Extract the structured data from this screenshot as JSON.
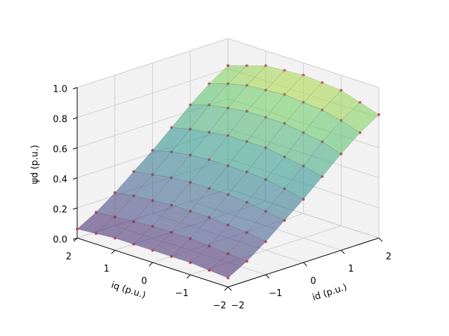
{
  "chart_data": {
    "type": "surface",
    "xlabel": "id (p.u.)",
    "ylabel": "iq (p.u.)",
    "zlabel": "ψd (p.u.)",
    "x": [
      -2,
      -1.5,
      -1,
      -0.5,
      0,
      0.5,
      1,
      1.5,
      2
    ],
    "y": [
      -2,
      -1.5,
      -1,
      -0.5,
      0,
      0.5,
      1,
      1.5,
      2
    ],
    "z": [
      [
        0.06,
        0.07,
        0.08,
        0.08,
        0.08,
        0.08,
        0.08,
        0.07,
        0.06
      ],
      [
        0.13,
        0.14,
        0.15,
        0.16,
        0.16,
        0.16,
        0.15,
        0.14,
        0.13
      ],
      [
        0.22,
        0.24,
        0.25,
        0.26,
        0.26,
        0.26,
        0.25,
        0.24,
        0.22
      ],
      [
        0.32,
        0.34,
        0.36,
        0.37,
        0.37,
        0.37,
        0.36,
        0.34,
        0.32
      ],
      [
        0.42,
        0.45,
        0.47,
        0.48,
        0.48,
        0.48,
        0.47,
        0.45,
        0.42
      ],
      [
        0.53,
        0.56,
        0.58,
        0.6,
        0.6,
        0.6,
        0.58,
        0.56,
        0.53
      ],
      [
        0.64,
        0.68,
        0.7,
        0.72,
        0.72,
        0.72,
        0.7,
        0.68,
        0.64
      ],
      [
        0.74,
        0.78,
        0.81,
        0.82,
        0.83,
        0.82,
        0.81,
        0.78,
        0.74
      ],
      [
        0.82,
        0.86,
        0.9,
        0.91,
        0.92,
        0.91,
        0.9,
        0.86,
        0.82
      ]
    ],
    "xlim": [
      -2,
      2
    ],
    "ylim": [
      -2,
      2
    ],
    "zlim": [
      0,
      1
    ],
    "xticks": [
      {
        "value": -2,
        "label": "−2"
      },
      {
        "value": -1,
        "label": "−1"
      },
      0,
      1,
      2
    ],
    "yticks": [
      {
        "value": -2,
        "label": "−2"
      },
      {
        "value": -1,
        "label": "−1"
      },
      0,
      1,
      2
    ],
    "zticks": [
      {
        "value": 0,
        "label": "0.0"
      },
      {
        "value": 0.2,
        "label": "0.2"
      },
      {
        "value": 0.4,
        "label": "0.4"
      },
      {
        "value": 0.6,
        "label": "0.6"
      },
      {
        "value": 0.8,
        "label": "0.8"
      },
      {
        "value": 1,
        "label": "1.0"
      }
    ],
    "colormap": "viridis",
    "point_color": "#c0304a",
    "grid": true
  }
}
